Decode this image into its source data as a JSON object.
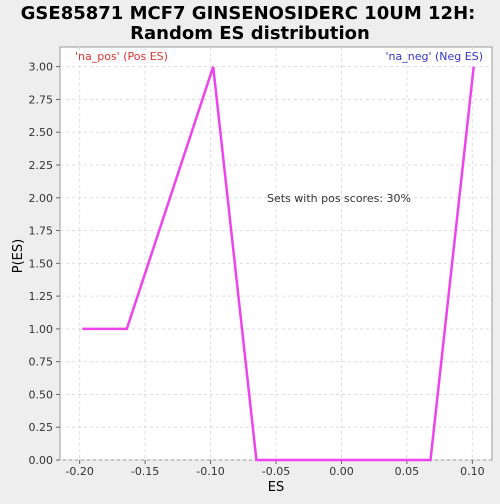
{
  "chart_data": {
    "type": "line",
    "title_line1": "GSE85871 MCF7 GINSENOSIDERC 10UM 12H:",
    "title_line2": "Random ES distribution",
    "xlabel": "ES",
    "ylabel": "P(ES)",
    "xlim": [
      -0.215,
      0.115
    ],
    "ylim": [
      0,
      3.15
    ],
    "xticks": [
      -0.2,
      -0.15,
      -0.1,
      -0.05,
      0.0,
      0.05,
      0.1
    ],
    "xtick_labels": [
      "-0.20",
      "-0.15",
      "-0.10",
      "-0.05",
      "0.00",
      "0.05",
      "0.10"
    ],
    "yticks": [
      0,
      0.25,
      0.5,
      0.75,
      1.0,
      1.25,
      1.5,
      1.75,
      2.0,
      2.25,
      2.5,
      2.75,
      3.0
    ],
    "ytick_labels": [
      "0.00",
      "0.25",
      "0.50",
      "0.75",
      "1.00",
      "1.25",
      "1.50",
      "1.75",
      "2.00",
      "2.25",
      "2.50",
      "2.75",
      "3.00"
    ],
    "grid": true,
    "series": [
      {
        "color": "#ee44ee",
        "x": [
          -0.198,
          -0.164,
          -0.098,
          -0.065,
          0.068,
          0.101
        ],
        "y": [
          1.0,
          1.0,
          3.0,
          0.0,
          0.0,
          3.0
        ]
      }
    ],
    "annotations": {
      "pos_label": "'na_pos' (Pos ES)",
      "neg_label": "'na_neg' (Neg ES)",
      "center_text": "Sets with pos scores: 30%"
    },
    "colors": {
      "pos_label": "#dd3333",
      "neg_label": "#3333cc",
      "line": "#ee44ee",
      "plot_bg": "#ffffff",
      "page_bg": "#eeeeee",
      "grid": "#dddddd"
    }
  }
}
